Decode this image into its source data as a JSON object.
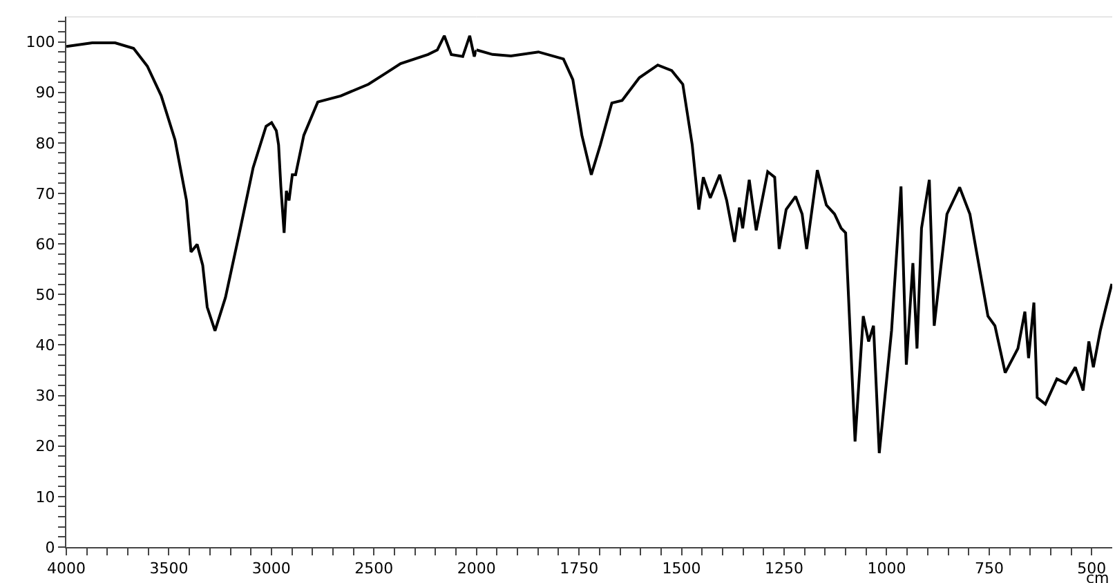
{
  "chart_data": [
    {
      "type": "line",
      "color": "#000000",
      "xlim": [
        4000,
        2000
      ],
      "ylim": [
        0,
        105
      ],
      "tick_labels": "xy",
      "marker": "none",
      "line_style": "solid",
      "x": [
        4000,
        3874,
        3762,
        3672,
        3605,
        3537,
        3470,
        3414,
        3392,
        3362,
        3335,
        3313,
        3275,
        3224,
        3156,
        3089,
        3026,
        2999,
        2976,
        2965,
        2954,
        2938,
        2927,
        2914,
        2898,
        2882,
        2842,
        2774,
        2662,
        2527,
        2438,
        2370,
        2236,
        2191,
        2157,
        2123,
        2067,
        2033,
        2011,
        2000
      ],
      "values": [
        99.1,
        99.8,
        99.8,
        98.7,
        95.2,
        89.3,
        80.6,
        68.6,
        58.4,
        59.9,
        55.8,
        47.5,
        42.8,
        49.4,
        62.2,
        75.1,
        83.3,
        84.0,
        82.4,
        79.6,
        71.4,
        62.2,
        70.5,
        68.6,
        73.7,
        73.7,
        81.5,
        88.1,
        89.3,
        91.6,
        93.9,
        95.7,
        97.5,
        98.4,
        101.2,
        97.5,
        97.1,
        101.2,
        97.1,
        98.4
      ],
      "xticks": [
        4000,
        {
          "value": 3900,
          "label": null
        },
        {
          "value": 3800,
          "label": null
        },
        {
          "value": 3700,
          "label": null
        },
        {
          "value": 3600,
          "label": null
        },
        3500,
        {
          "value": 3400,
          "label": null
        },
        {
          "value": 3300,
          "label": null
        },
        {
          "value": 3200,
          "label": null
        },
        {
          "value": 3100,
          "label": null
        },
        3000,
        {
          "value": 2900,
          "label": null
        },
        {
          "value": 2800,
          "label": null
        },
        {
          "value": 2700,
          "label": null
        },
        {
          "value": 2600,
          "label": null
        },
        2500,
        {
          "value": 2400,
          "label": null
        },
        {
          "value": 2300,
          "label": null
        },
        {
          "value": 2200,
          "label": null
        },
        {
          "value": 2100,
          "label": null
        }
      ],
      "yticks": [
        0,
        {
          "value": 2,
          "label": null
        },
        {
          "value": 4,
          "label": null
        },
        {
          "value": 6,
          "label": null
        },
        {
          "value": 8,
          "label": null
        },
        10,
        {
          "value": 12,
          "label": null
        },
        {
          "value": 14,
          "label": null
        },
        {
          "value": 16,
          "label": null
        },
        {
          "value": 18,
          "label": null
        },
        20,
        {
          "value": 22,
          "label": null
        },
        {
          "value": 24,
          "label": null
        },
        {
          "value": 26,
          "label": null
        },
        {
          "value": 28,
          "label": null
        },
        30,
        {
          "value": 32,
          "label": null
        },
        {
          "value": 34,
          "label": null
        },
        {
          "value": 36,
          "label": null
        },
        {
          "value": 38,
          "label": null
        },
        40,
        {
          "value": 42,
          "label": null
        },
        {
          "value": 44,
          "label": null
        },
        {
          "value": 46,
          "label": null
        },
        {
          "value": 48,
          "label": null
        },
        50,
        {
          "value": 52,
          "label": null
        },
        {
          "value": 54,
          "label": null
        },
        {
          "value": 56,
          "label": null
        },
        {
          "value": 58,
          "label": null
        },
        60,
        {
          "value": 62,
          "label": null
        },
        {
          "value": 64,
          "label": null
        },
        {
          "value": 66,
          "label": null
        },
        {
          "value": 68,
          "label": null
        },
        70,
        {
          "value": 72,
          "label": null
        },
        {
          "value": 74,
          "label": null
        },
        {
          "value": 76,
          "label": null
        },
        {
          "value": 78,
          "label": null
        },
        80,
        {
          "value": 82,
          "label": null
        },
        {
          "value": 84,
          "label": null
        },
        {
          "value": 86,
          "label": null
        },
        {
          "value": 88,
          "label": null
        },
        90,
        {
          "value": 92,
          "label": null
        },
        {
          "value": 94,
          "label": null
        },
        {
          "value": 96,
          "label": null
        },
        {
          "value": 98,
          "label": null
        },
        100,
        {
          "value": 102,
          "label": null
        },
        {
          "value": 104,
          "label": null
        }
      ]
    },
    {
      "type": "line",
      "color": "#000000",
      "xlim": [
        2000,
        450
      ],
      "ylim": [
        0,
        105
      ],
      "tick_labels": "x",
      "marker": "none",
      "line_style": "solid",
      "xlabel": "cm",
      "x": [
        2000,
        1961,
        1916,
        1849,
        1788,
        1765,
        1743,
        1720,
        1698,
        1670,
        1645,
        1603,
        1558,
        1524,
        1497,
        1474,
        1458,
        1447,
        1430,
        1407,
        1390,
        1371,
        1359,
        1351,
        1335,
        1318,
        1290,
        1273,
        1262,
        1245,
        1222,
        1206,
        1195,
        1169,
        1147,
        1127,
        1111,
        1100,
        1077,
        1057,
        1044,
        1032,
        1018,
        988,
        965,
        952,
        936,
        926,
        915,
        896,
        884,
        870,
        853,
        822,
        797,
        781,
        753,
        736,
        711,
        680,
        663,
        654,
        641,
        633,
        613,
        585,
        563,
        540,
        521,
        507,
        496,
        479,
        468,
        451
      ],
      "values": [
        98.4,
        97.5,
        97.2,
        98.0,
        96.6,
        92.5,
        81.5,
        73.7,
        79.6,
        87.9,
        88.4,
        92.9,
        95.4,
        94.3,
        91.6,
        79.6,
        66.8,
        73.2,
        69.1,
        73.7,
        68.6,
        60.4,
        67.2,
        63.1,
        72.7,
        62.7,
        74.3,
        73.2,
        59.0,
        66.8,
        69.4,
        65.9,
        59.0,
        74.6,
        67.7,
        65.9,
        63.1,
        62.2,
        20.9,
        45.7,
        40.7,
        43.8,
        18.6,
        42.9,
        71.4,
        36.1,
        56.2,
        39.3,
        63.1,
        72.7,
        43.8,
        53.9,
        65.9,
        71.2,
        65.9,
        58.5,
        45.7,
        43.8,
        34.5,
        39.3,
        46.6,
        37.4,
        48.4,
        29.6,
        28.3,
        33.3,
        32.4,
        35.6,
        31.0,
        40.7,
        35.6,
        42.9,
        46.6,
        52.1
      ],
      "xticks": [
        2000,
        {
          "value": 1950,
          "label": null
        },
        {
          "value": 1900,
          "label": null
        },
        {
          "value": 1850,
          "label": null
        },
        {
          "value": 1800,
          "label": null
        },
        1750,
        {
          "value": 1700,
          "label": null
        },
        {
          "value": 1650,
          "label": null
        },
        {
          "value": 1600,
          "label": null
        },
        {
          "value": 1550,
          "label": null
        },
        1500,
        {
          "value": 1450,
          "label": null
        },
        {
          "value": 1400,
          "label": null
        },
        {
          "value": 1350,
          "label": null
        },
        {
          "value": 1300,
          "label": null
        },
        1250,
        {
          "value": 1200,
          "label": null
        },
        {
          "value": 1150,
          "label": null
        },
        {
          "value": 1100,
          "label": null
        },
        {
          "value": 1050,
          "label": null
        },
        1000,
        {
          "value": 950,
          "label": null
        },
        {
          "value": 900,
          "label": null
        },
        {
          "value": 850,
          "label": null
        },
        {
          "value": 800,
          "label": null
        },
        750,
        {
          "value": 700,
          "label": null
        },
        {
          "value": 650,
          "label": null
        },
        {
          "value": 600,
          "label": null
        },
        {
          "value": 550,
          "label": null
        },
        500
      ],
      "yticks": [
        0,
        10,
        20,
        30,
        40,
        50,
        60,
        70,
        80,
        90,
        100
      ]
    }
  ]
}
